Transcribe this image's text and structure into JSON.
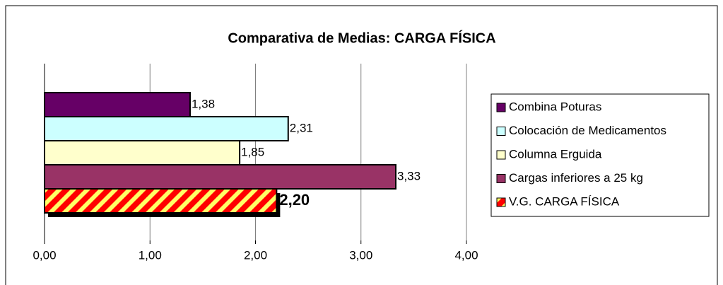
{
  "chart_data": {
    "type": "bar",
    "orientation": "horizontal",
    "title": "Comparativa de Medias: CARGA FÍSICA",
    "series": [
      {
        "name": "Combina Poturas",
        "color": "#660066",
        "values": [
          1.38
        ],
        "value_labels": [
          "1,38"
        ]
      },
      {
        "name": "Colocación de Medicamentos",
        "color": "#ccffff",
        "values": [
          2.31
        ],
        "value_labels": [
          "2,31"
        ]
      },
      {
        "name": "Columna Erguida",
        "color": "#ffffcc",
        "values": [
          1.85
        ],
        "value_labels": [
          "1,85"
        ]
      },
      {
        "name": "Cargas inferiores a 25 kg",
        "color": "#993366",
        "values": [
          3.33
        ],
        "value_labels": [
          "3,33"
        ]
      },
      {
        "name": "V.G. CARGA FÍSICA",
        "color": "#ff0000",
        "pattern": "diagonal",
        "values": [
          2.2
        ],
        "value_labels": [
          "2,20"
        ]
      }
    ],
    "xlim": [
      0,
      4
    ],
    "xticks": [
      {
        "value": 0,
        "label": "0,00"
      },
      {
        "value": 1,
        "label": "1,00"
      },
      {
        "value": 2,
        "label": "2,00"
      },
      {
        "value": 3,
        "label": "3,00"
      },
      {
        "value": 4,
        "label": "4,00"
      }
    ],
    "grid": true,
    "legend": "right"
  }
}
